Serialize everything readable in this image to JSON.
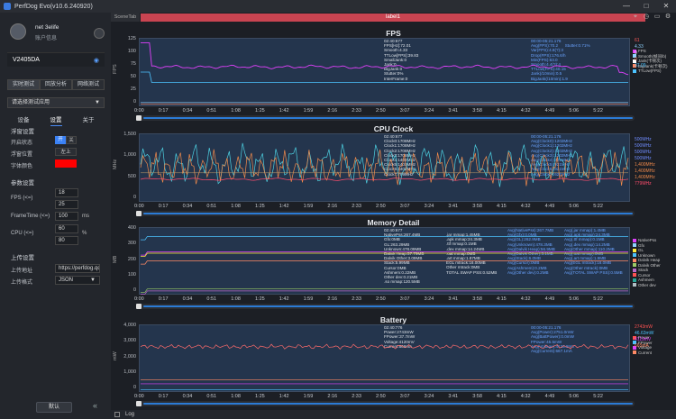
{
  "window": {
    "title": "PerfDog Evo(v10.6.240920)",
    "min": "—",
    "max": "□",
    "close": "✕"
  },
  "user": {
    "name": "net 3elife",
    "sub": "账户信息",
    "settings_icon": "gear-icon"
  },
  "device": {
    "name": "V2405DA",
    "conn_icon": "wifi-icon"
  },
  "mode_tabs": [
    "实时测试",
    "回放分析",
    "网络测试"
  ],
  "app_select": {
    "placeholder": "请选择测试应用"
  },
  "sub_tabs": [
    "设备",
    "设置",
    "关于"
  ],
  "float": {
    "section": "浮窗设置",
    "open_label": "开启状态",
    "open_on": "开",
    "open_off": "关",
    "pos_label": "浮窗位置",
    "pos_value": "左上",
    "color_label": "字体颜色",
    "color": "#ff0000"
  },
  "params": {
    "section": "参数设置",
    "fps_label": "FPS (<=)",
    "fps_v1": "18",
    "fps_v2": "25",
    "ft_label": "FrameTime (<=)",
    "ft_value": "100",
    "ft_unit": "ms",
    "cpu_label": "CPU (<=)",
    "cpu_v1": "60",
    "cpu_v2": "80",
    "cpu_unit": "%"
  },
  "upload": {
    "section": "上传设置",
    "addr_label": "上传地址",
    "addr_value": "https://perfdog.qq",
    "fmt_label": "上传格式",
    "fmt_value": "JSON"
  },
  "footer": {
    "default_btn": "默认",
    "collapse_icon": "double-chevron-left-icon"
  },
  "top": {
    "scene_tab": "SceneTab",
    "label": "label1"
  },
  "xticks": [
    "0:00",
    "0:17",
    "0:34",
    "0:51",
    "1:08",
    "1:25",
    "1:42",
    "1:59",
    "2:16",
    "2:33",
    "2:50",
    "3:07",
    "3:24",
    "3:41",
    "3:58",
    "4:15",
    "4:32",
    "4:49",
    "5:06",
    "5:22"
  ],
  "colors": {
    "accent": "#2b7bd6",
    "label_bar": "#c94451",
    "plot_bg": "#24354d"
  },
  "panels": [
    {
      "title": "FPS",
      "ylabel": "FPS",
      "yticks": [
        "125",
        "100",
        "75",
        "50",
        "25",
        "0"
      ],
      "info": "02:40:677\nFPS[Hz]:72.01\nSmooth:4.33\nTTLow[FPS]:39.83\nSmallJank:0\nJank:0\nBigJank:0\nStutter:0%\nInterFrame:0",
      "info2": "00:00-05:21.176\nAvg(FPS):70.2      Stutter:0.71%\nVar(FPS):4.8(?):3\nDrop(FPS):176.6/h\nMin(FPS):63.0\nSmooth:4.4(?):4\nTTLow(FPS):40.15\nJank(/10min):0.5\nBigJank(/10min):1.9",
      "legend": [
        {
          "name": "FPS",
          "color": "#e040fb"
        },
        {
          "name": "Smooth(帧间/b)",
          "color": "#8fd3ff"
        },
        {
          "name": "Jank(卡顿次)",
          "color": "#ffffff"
        },
        {
          "name": "BigJank(卡顿次)",
          "color": "#ff8a65"
        },
        {
          "name": "TTLow(FPS)",
          "color": "#4cc3ff"
        }
      ],
      "right": [
        {
          "t": "61",
          "c": "#ff5a5a"
        },
        {
          "t": "4.33",
          "c": "#8fd3ff"
        },
        {
          "t": "0",
          "c": "#ffffff"
        },
        {
          "t": "0",
          "c": "#ff8a65"
        },
        {
          "t": "37.09",
          "c": "#4cc3ff"
        }
      ]
    },
    {
      "title": "CPU Clock",
      "ylabel": "MHz",
      "yticks": [
        "1,500",
        "1,000",
        "500",
        "0"
      ],
      "info": "02:40:677\nClock0:1708MHz\nClock1:1708MHz\nClock2:1708MHz\nClock3:1708MHz\nClock4:1402MHz\nClock5:1402MHz\nClock6:1402MHz\nClock7:799MHz",
      "info2": "00:00-05:21.176\nAvg(Clock0):1202MHz\nAvg(Clock1):1202MHz\nAvg(Clock2):1202MHz\nAvg(Clock3):1202MHz\nAvg(Clock4):921MHz\nAvg(Clock5):921MHz\nAvg(Clock6):921MHz\nAvg(Clock7):621MHz",
      "legend": [],
      "right": [
        {
          "t": "500MHz",
          "c": "#6f8cff"
        },
        {
          "t": "500MHz",
          "c": "#6f8cff"
        },
        {
          "t": "500MHz",
          "c": "#6f8cff"
        },
        {
          "t": "500MHz",
          "c": "#6f8cff"
        },
        {
          "t": "1,400MHz",
          "c": "#f08a4b"
        },
        {
          "t": "1,400MHz",
          "c": "#f08a4b"
        },
        {
          "t": "1,400MHz",
          "c": "#f08a4b"
        },
        {
          "t": "779MHz",
          "c": "#ff4d6d"
        }
      ]
    },
    {
      "title": "Memory Detail",
      "ylabel": "MB",
      "yticks": [
        "400",
        "300",
        "200",
        "100",
        "0"
      ],
      "info": "02:40:677\nNativePss:267.4MB\nGfx:0MB\nGL:263.29MB\nUnknown:478.09MB\nDalvik Heap:57.79MB\nDalvik Other:3.09MB\nStack:5.99MB\nCursor:0MB\nAshmem:0.22MB\nOther dev:0.21MB\n.so mmap:120.5MB",
      "info3": ".jar mmap:1.45MB\n.apk mmap:24.3MB\n.ttf mmap:0.1MB\n.dex mmap:14.24MB\n.oat mmap:0MB\n.art mmap:1.87MB\nEGL mtrack:16.00MB\nOther mtrack:0MB\nTOTAL SWAP PSS:0.52MB",
      "info2": "Avg(NativePss):267.7MB\nAvg(Gfx):0.0MB\nAvg(GL):262.9MB\nAvg(Unknown):478.3MB\nAvg(Dalvik Heap):56.9MB\nAvg(Dalvik Other):3.1MB\nAvg(Stack):6.0MB\nAvg(Cursor):0MB\nAvg(Ashmem):0.2MB\nAvg(Other dev):0.2MB",
      "info4": "Avg(.jar mmap):1.4MB\nAvg(.apk mmap):24.3MB\nAvg(.ttf mmap):0.1MB\nAvg(.dex mmap):14.2MB\nAvg(Other mmap):110.2MB\nAvg(.oat mmap):0MB\nAvg(.art mmap):1.9MB\nAvg(EGL mtrack):16.0MB\nAvg(Other mtrack):0MB\nAvg(TOTAL SWAP PSS):0.5MB",
      "legend": [
        {
          "name": "NativePss",
          "color": "#e040fb"
        },
        {
          "name": "Gfx",
          "color": "#8fd3ff"
        },
        {
          "name": "GL",
          "color": "#ffeb3b"
        },
        {
          "name": "Unknown",
          "color": "#4cc3ff"
        },
        {
          "name": "Dalvik Heap",
          "color": "#ff8a65"
        },
        {
          "name": "Dalvik Other",
          "color": "#9ccc65"
        },
        {
          "name": "Stack",
          "color": "#ba68c8"
        },
        {
          "name": "Cursor",
          "color": "#ff5252"
        },
        {
          "name": "Ashmem",
          "color": "#26a69a"
        },
        {
          "name": "Other dev",
          "color": "#b0bec5"
        }
      ],
      "right": []
    },
    {
      "title": "Battery",
      "ylabel": "mW",
      "yticks": [
        "4,000",
        "3,000",
        "2,000",
        "1,000",
        "0"
      ],
      "info": "02:40:776\nPower:2743mW\nFPower:37.7mW\nVoltage:4120mV\nCurrent:666mA",
      "info2": "00:00-05:21.176\nAvg(Power):2751.0mW\nAvg(BattPower):0.0mW\nFPower:45.5mW\nAvg(Voltage):4123.8mV\nAvg(Current):667.1mA",
      "legend": [
        {
          "name": "Power",
          "color": "#ff5252"
        },
        {
          "name": "FPower",
          "color": "#4cc3ff"
        },
        {
          "name": "Voltage",
          "color": "#e040fb"
        },
        {
          "name": "Current",
          "color": "#ff8a65"
        }
      ],
      "right": [
        {
          "t": "2743mW",
          "c": "#ff5252"
        },
        {
          "t": "46.63mW",
          "c": "#4cc3ff"
        },
        {
          "t": "4119mV",
          "c": "#e040fb"
        },
        {
          "t": "665mA",
          "c": "#ff8a65"
        }
      ]
    }
  ],
  "log": {
    "label": "Log"
  }
}
